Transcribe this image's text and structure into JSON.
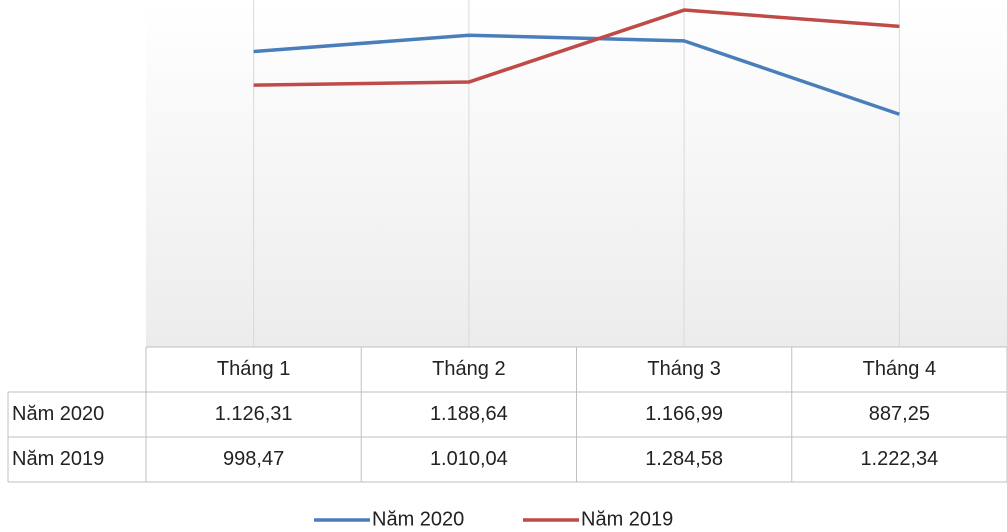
{
  "chart_data": {
    "type": "line",
    "categories": [
      "Tháng 1",
      "Tháng 2",
      "Tháng 3",
      "Tháng 4"
    ],
    "series": [
      {
        "name": "Năm 2020",
        "color": "#4a7ebb",
        "values": [
          1126.31,
          1188.64,
          1166.99,
          887.25
        ],
        "value_labels": [
          "1.126,31",
          "1.188,64",
          "1.166,99",
          "887,25"
        ]
      },
      {
        "name": "Năm 2019",
        "color": "#be4b48",
        "values": [
          998.47,
          1010.04,
          1284.58,
          1222.34
        ],
        "value_labels": [
          "998,47",
          "1.010,04",
          "1.284,58",
          "1.222,34"
        ]
      }
    ],
    "ylim": [
      0,
      1300
    ],
    "legend": "bottom"
  }
}
